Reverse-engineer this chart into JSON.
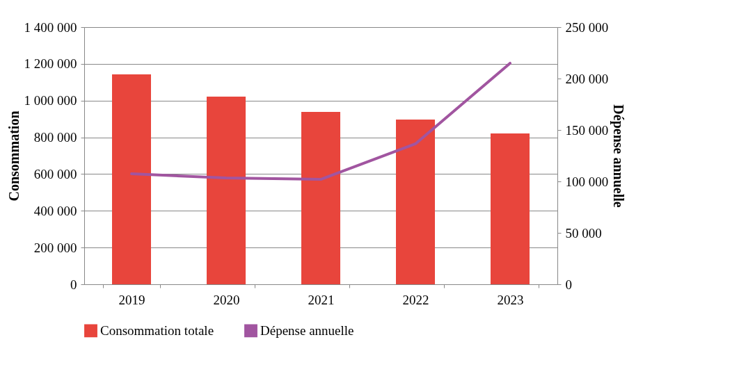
{
  "chart_data": {
    "type": "bar",
    "categories": [
      "2019",
      "2020",
      "2021",
      "2022",
      "2023"
    ],
    "series": [
      {
        "name": "Consommation totale",
        "color": "#e8453c",
        "values": [
          1143000,
          1022000,
          938000,
          897000,
          821000
        ]
      },
      {
        "name": "Dépense annuelle",
        "type": "line",
        "axis": "y2",
        "color": "#a155a0",
        "values": [
          107400,
          103400,
          102000,
          136500,
          214900
        ]
      }
    ],
    "ylabel": "Consommation",
    "y2label": "Dépense annuelle",
    "ylim": [
      0,
      1400000
    ],
    "yticks": [
      0,
      {
        "value": 200000,
        "label": "200 000"
      },
      {
        "value": 400000,
        "label": "400 000"
      },
      {
        "value": 600000,
        "label": "600 000"
      },
      {
        "value": 800000,
        "label": "800 000"
      },
      {
        "value": 1000000,
        "label": "1 000 000"
      },
      {
        "value": 1200000,
        "label": "1 200 000"
      },
      {
        "value": 1400000,
        "label": "1 400 000"
      }
    ],
    "y2lim": [
      0,
      250000
    ],
    "y2ticks": [
      0,
      {
        "value": 50000,
        "label": "50 000"
      },
      {
        "value": 100000,
        "label": "100 000"
      },
      {
        "value": 150000,
        "label": "150 000"
      },
      {
        "value": 200000,
        "label": "200 000"
      },
      {
        "value": 250000,
        "label": "250 000"
      }
    ],
    "grid": "y",
    "legend": "bottom",
    "marker": "none",
    "line_style": "solid"
  }
}
